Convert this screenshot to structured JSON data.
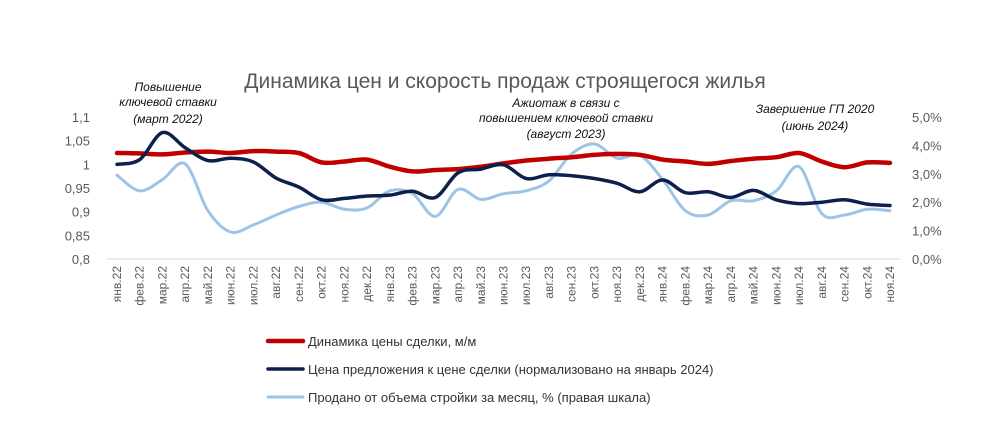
{
  "chart_data": {
    "type": "line",
    "title": "Динамика цен и скорость продаж строящегося жилья",
    "categories": [
      "янв.22",
      "фев.22",
      "мар.22",
      "апр.22",
      "май.22",
      "июн.22",
      "июл.22",
      "авг.22",
      "сен.22",
      "окт.22",
      "ноя.22",
      "дек.22",
      "янв.23",
      "фев.23",
      "мар.23",
      "апр.23",
      "май.23",
      "июн.23",
      "июл.23",
      "авг.23",
      "сен.23",
      "окт.23",
      "ноя.23",
      "дек.23",
      "янв.24",
      "фев.24",
      "мар.24",
      "апр.24",
      "май.24",
      "июн.24",
      "июл.24",
      "авг.24",
      "сен.24",
      "окт.24",
      "ноя.24"
    ],
    "y_left": {
      "min": 0.8,
      "max": 1.1,
      "ticks": [
        "0,8",
        "0,85",
        "0,9",
        "0,95",
        "1",
        "1,05",
        "1,1"
      ]
    },
    "y_right": {
      "min": 0,
      "max": 5,
      "ticks": [
        "0,0%",
        "1,0%",
        "2,0%",
        "3,0%",
        "4,0%",
        "5,0%"
      ]
    },
    "series": [
      {
        "name": "Динамика цены сделки, м/м",
        "axis": "left",
        "color": "#c00000",
        "values": [
          1.024,
          1.023,
          1.021,
          1.025,
          1.027,
          1.024,
          1.028,
          1.027,
          1.024,
          1.004,
          1.006,
          1.01,
          0.995,
          0.985,
          0.988,
          0.99,
          0.995,
          1.002,
          1.008,
          1.012,
          1.015,
          1.02,
          1.022,
          1.02,
          1.01,
          1.006,
          1.001,
          1.007,
          1.012,
          1.015,
          1.024,
          1.006,
          0.994,
          1.004,
          1.003
        ]
      },
      {
        "name": "Цена предложения к цене сделки (нормализовано на январь 2024)",
        "axis": "left",
        "color": "#0d1f4c",
        "values": [
          1.0,
          1.01,
          1.067,
          1.035,
          1.008,
          1.013,
          1.005,
          0.971,
          0.952,
          0.925,
          0.928,
          0.933,
          0.935,
          0.943,
          0.93,
          0.982,
          0.99,
          0.999,
          0.97,
          0.978,
          0.976,
          0.97,
          0.96,
          0.942,
          0.967,
          0.94,
          0.942,
          0.93,
          0.945,
          0.925,
          0.917,
          0.92,
          0.925,
          0.916,
          0.913
        ]
      },
      {
        "name": "Продано от объема стройки за месяц, % (правая шкала)",
        "axis": "right",
        "color": "#9dc3e6",
        "values": [
          2.95,
          2.4,
          2.8,
          3.35,
          1.7,
          0.95,
          1.2,
          1.55,
          1.85,
          2.0,
          1.75,
          1.8,
          2.4,
          2.3,
          1.5,
          2.45,
          2.1,
          2.3,
          2.4,
          2.75,
          3.7,
          4.05,
          3.55,
          3.65,
          2.8,
          1.7,
          1.55,
          2.05,
          2.05,
          2.4,
          3.25,
          1.6,
          1.55,
          1.75,
          1.7
        ]
      }
    ],
    "annotations": [
      {
        "lines": [
          "Повышение",
          "ключевой ставки",
          "(март 2022)"
        ]
      },
      {
        "lines": [
          "Ажиотаж в связи с",
          "повышением ключевой ставки",
          "(август 2023)"
        ]
      },
      {
        "lines": [
          "Завершение ГП 2020",
          "(июнь 2024)"
        ]
      }
    ],
    "grid": false,
    "legend": "bottom"
  }
}
